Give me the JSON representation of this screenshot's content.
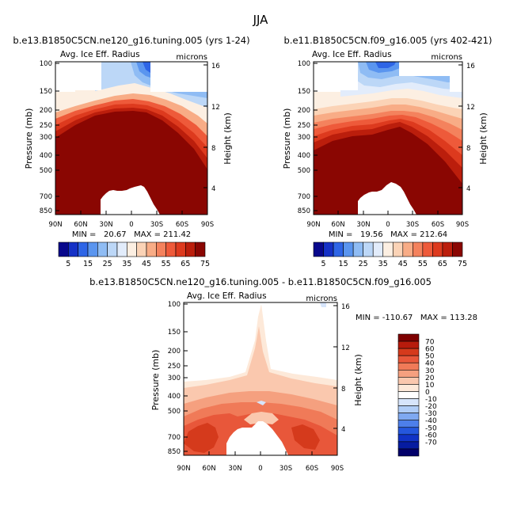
{
  "figure_title": "JJA",
  "chart_data": [
    {
      "type": "heatmap",
      "panel": "top-left",
      "title": "b.e13.B1850C5CN.ne120_g16.tuning.005 (yrs 1-24)",
      "subtitle_left": "Avg. Ice Eff. Radius",
      "subtitle_right": "microns",
      "ylabel": "Pressure (mb)",
      "ylabel_right": "Height (km)",
      "x_ticks": [
        "90N",
        "60N",
        "30N",
        "0",
        "30S",
        "60S",
        "90S"
      ],
      "y_ticks": [
        "100",
        "150",
        "200",
        "250",
        "300",
        "400",
        "500",
        "700",
        "850"
      ],
      "height_ticks": [
        "16",
        "12",
        "8",
        "4"
      ],
      "stats": "MIN =   20.67   MAX = 211.42",
      "colorbar_labels": [
        "5",
        "15",
        "25",
        "35",
        "45",
        "55",
        "65",
        "75"
      ]
    },
    {
      "type": "heatmap",
      "panel": "top-right",
      "title": "b.e11.B1850C5CN.f09_g16.005 (yrs 402-421)",
      "subtitle_left": "Avg. Ice Eff. Radius",
      "subtitle_right": "microns",
      "ylabel": "Pressure (mb)",
      "ylabel_right": "Height (km)",
      "x_ticks": [
        "90N",
        "60N",
        "30N",
        "0",
        "30S",
        "60S",
        "90S"
      ],
      "y_ticks": [
        "100",
        "150",
        "200",
        "250",
        "300",
        "400",
        "500",
        "700",
        "850"
      ],
      "height_ticks": [
        "16",
        "12",
        "8",
        "4"
      ],
      "stats": "MIN =   19.56   MAX = 212.64",
      "colorbar_labels": [
        "5",
        "15",
        "25",
        "35",
        "45",
        "55",
        "65",
        "75"
      ]
    },
    {
      "type": "heatmap",
      "panel": "bottom",
      "title": "b.e13.B1850C5CN.ne120_g16.tuning.005 - b.e11.B1850C5CN.f09_g16.005",
      "subtitle_left": "Avg. Ice Eff. Radius",
      "subtitle_right": "microns",
      "ylabel": "Pressure (mb)",
      "ylabel_right": "Height (km)",
      "x_ticks": [
        "90N",
        "60N",
        "30N",
        "0",
        "30S",
        "60S",
        "90S"
      ],
      "y_ticks": [
        "100",
        "150",
        "200",
        "250",
        "300",
        "400",
        "500",
        "700",
        "850"
      ],
      "height_ticks": [
        "16",
        "12",
        "8",
        "4"
      ],
      "stats": "MIN = -110.67   MAX = 113.28",
      "colorbar_labels": [
        "70",
        "60",
        "50",
        "40",
        "30",
        "20",
        "10",
        "0",
        "-10",
        "-20",
        "-30",
        "-40",
        "-50",
        "-60",
        "-70"
      ]
    }
  ],
  "colors": {
    "sequential": [
      "#08088c",
      "#1531c6",
      "#2e65e6",
      "#5a95ef",
      "#8fbcf4",
      "#bcd7f7",
      "#e2ecfb",
      "#fcefe2",
      "#fbd3b6",
      "#f8ac86",
      "#f4825d",
      "#ee5a3a",
      "#dd3a1e",
      "#bb1e0c",
      "#8a0602"
    ],
    "diverging": [
      "#7e0000",
      "#b71b0c",
      "#d53a1c",
      "#e8573a",
      "#f07a58",
      "#f5a07f",
      "#fac8ae",
      "#fde9d9",
      "#ffffff",
      "#d7e5fb",
      "#b0cdf7",
      "#7fa9f1",
      "#4d7fea",
      "#2557dd",
      "#1133c6",
      "#061ca0",
      "#02006a"
    ]
  }
}
